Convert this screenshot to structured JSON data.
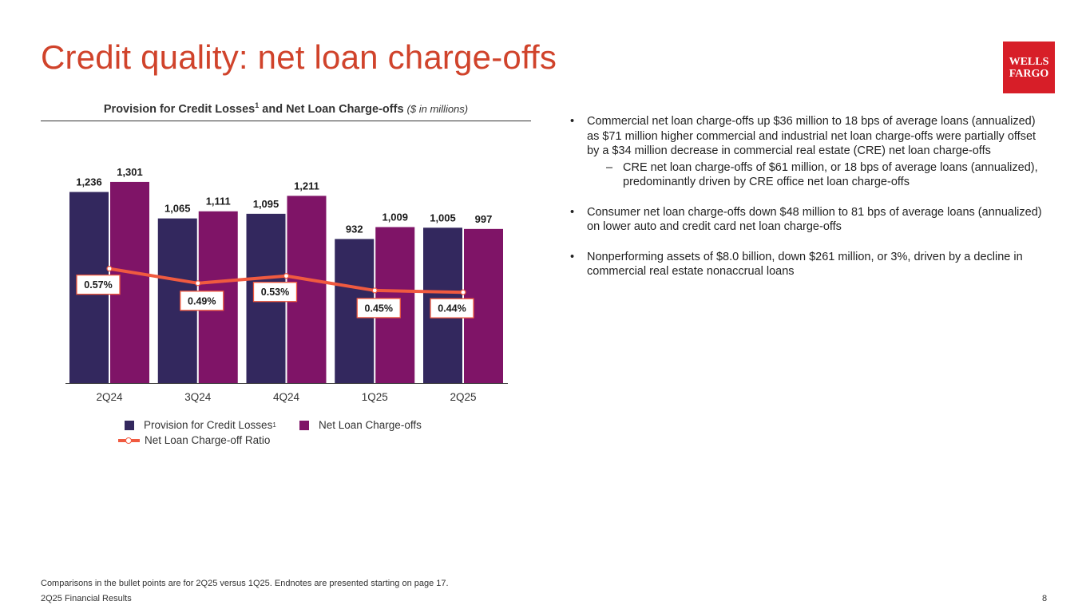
{
  "title": "Credit quality: net loan charge-offs",
  "logo": {
    "line1": "WELLS",
    "line2": "FARGO"
  },
  "chart_heading": {
    "main_a": "Provision for Credit Losses",
    "sup": "1",
    "main_b": " and Net Loan Charge-offs",
    "unit": "($ in millions)"
  },
  "chart_data": {
    "type": "bar",
    "categories": [
      "2Q24",
      "3Q24",
      "4Q24",
      "1Q25",
      "2Q25"
    ],
    "series": [
      {
        "name": "Provision for Credit Losses",
        "values": [
          1236,
          1065,
          1095,
          932,
          1005
        ],
        "labels": [
          "1,236",
          "1,065",
          "1,095",
          "932",
          "1,005"
        ],
        "color": "#33285e"
      },
      {
        "name": "Net Loan Charge-offs",
        "values": [
          1301,
          1111,
          1211,
          1009,
          997
        ],
        "labels": [
          "1,301",
          "1,111",
          "1,211",
          "1,009",
          "997"
        ],
        "color": "#7f1467"
      }
    ],
    "line_series": {
      "name": "Net Loan Charge-off Ratio",
      "values": [
        0.57,
        0.49,
        0.53,
        0.45,
        0.44
      ],
      "labels": [
        "0.57%",
        "0.49%",
        "0.53%",
        "0.45%",
        "0.44%"
      ],
      "color": "#f05a40"
    },
    "ylim": [
      0,
      1350
    ],
    "grid": false,
    "legend": "bottom"
  },
  "legend": {
    "provision": "Provision for Credit Losses",
    "provision_sup": "1",
    "nco": "Net Loan Charge-offs",
    "ratio": "Net Loan Charge-off Ratio"
  },
  "bullets": [
    {
      "text": "Commercial net loan charge-offs up $36 million to 18 bps of average loans (annualized) as $71 million higher commercial and industrial net loan charge-offs were partially offset by a $34 million decrease in commercial real estate (CRE) net loan charge-offs",
      "sub": "CRE net loan charge-offs of $61 million, or 18 bps of average loans (annualized), predominantly driven by CRE office net loan charge-offs"
    },
    {
      "text": "Consumer net loan charge-offs down $48 million to 81 bps of average loans (annualized) on lower auto and credit card net loan charge-offs"
    },
    {
      "text": "Nonperforming assets of $8.0 billion, down $261 million, or 3%, driven by a decline in commercial real estate nonaccrual loans"
    }
  ],
  "bullet_symbol": "•",
  "dash_symbol": "–",
  "footnote": "Comparisons in the bullet points are for 2Q25 versus 1Q25. Endnotes are presented starting on page 17.",
  "footer": "2Q25 Financial Results",
  "page_number": "8"
}
